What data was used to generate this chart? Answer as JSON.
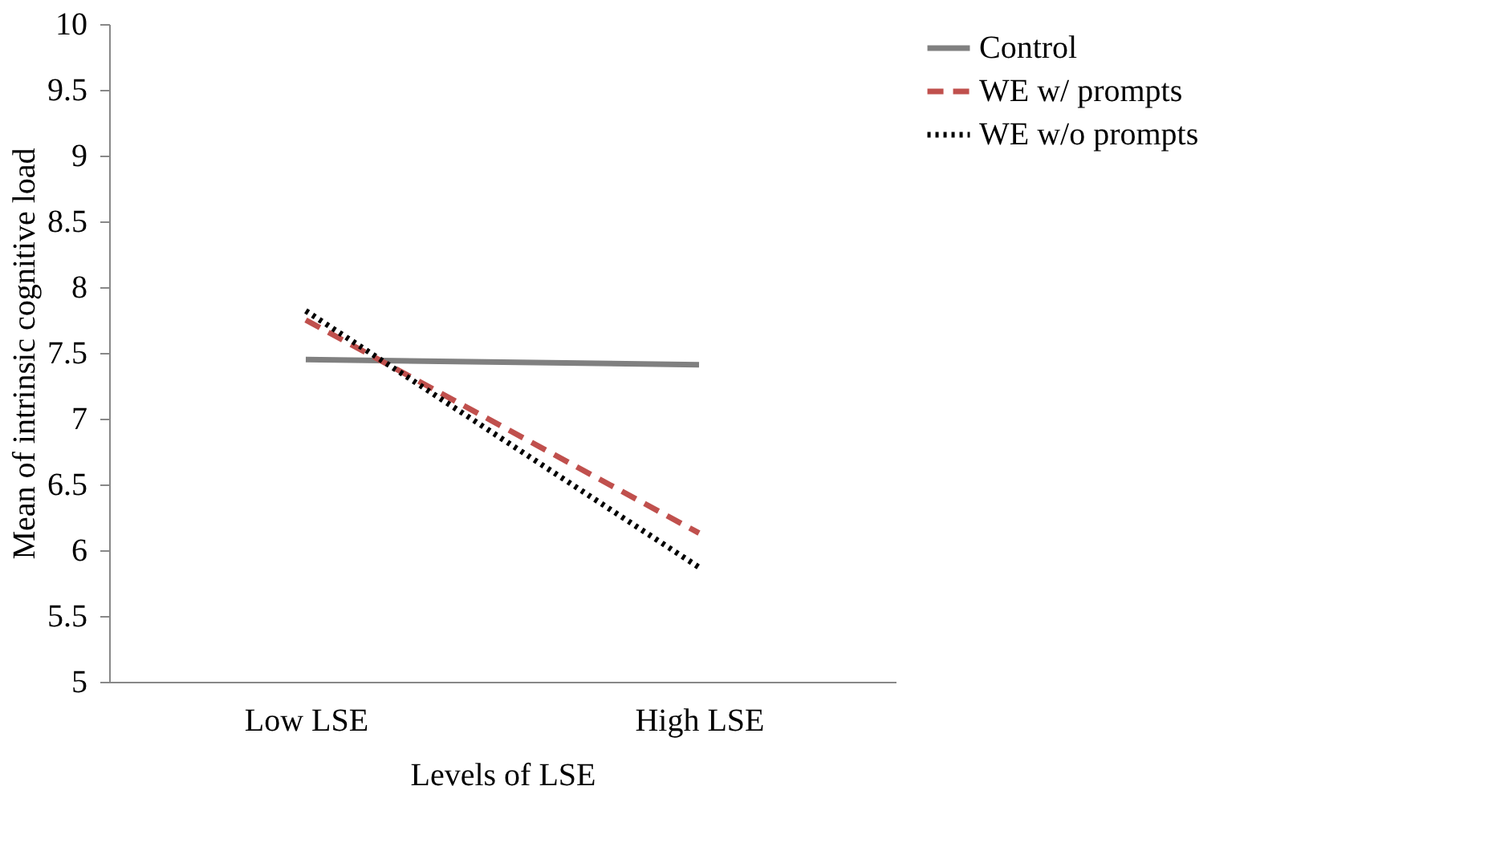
{
  "chart_data": {
    "type": "line",
    "xlabel": "Levels of LSE",
    "ylabel": "Mean of intrinsic cognitive load",
    "categories": [
      "Low LSE",
      "High LSE"
    ],
    "series": [
      {
        "name": "Control",
        "color": "#808080",
        "line_style": "solid",
        "values": [
          7.45,
          7.41
        ]
      },
      {
        "name": "WE w/ prompts",
        "color": "#c0504d",
        "line_style": "dashed",
        "values": [
          7.75,
          6.13
        ]
      },
      {
        "name": "WE w/o prompts",
        "color": "#000000",
        "line_style": "dotted",
        "values": [
          7.82,
          5.87
        ]
      }
    ],
    "ylim": [
      5,
      10
    ],
    "yticks": [
      5,
      5.5,
      6,
      6.5,
      7,
      7.5,
      8,
      8.5,
      9,
      9.5,
      10
    ],
    "grid": false,
    "legend": "right",
    "marker": "none"
  }
}
